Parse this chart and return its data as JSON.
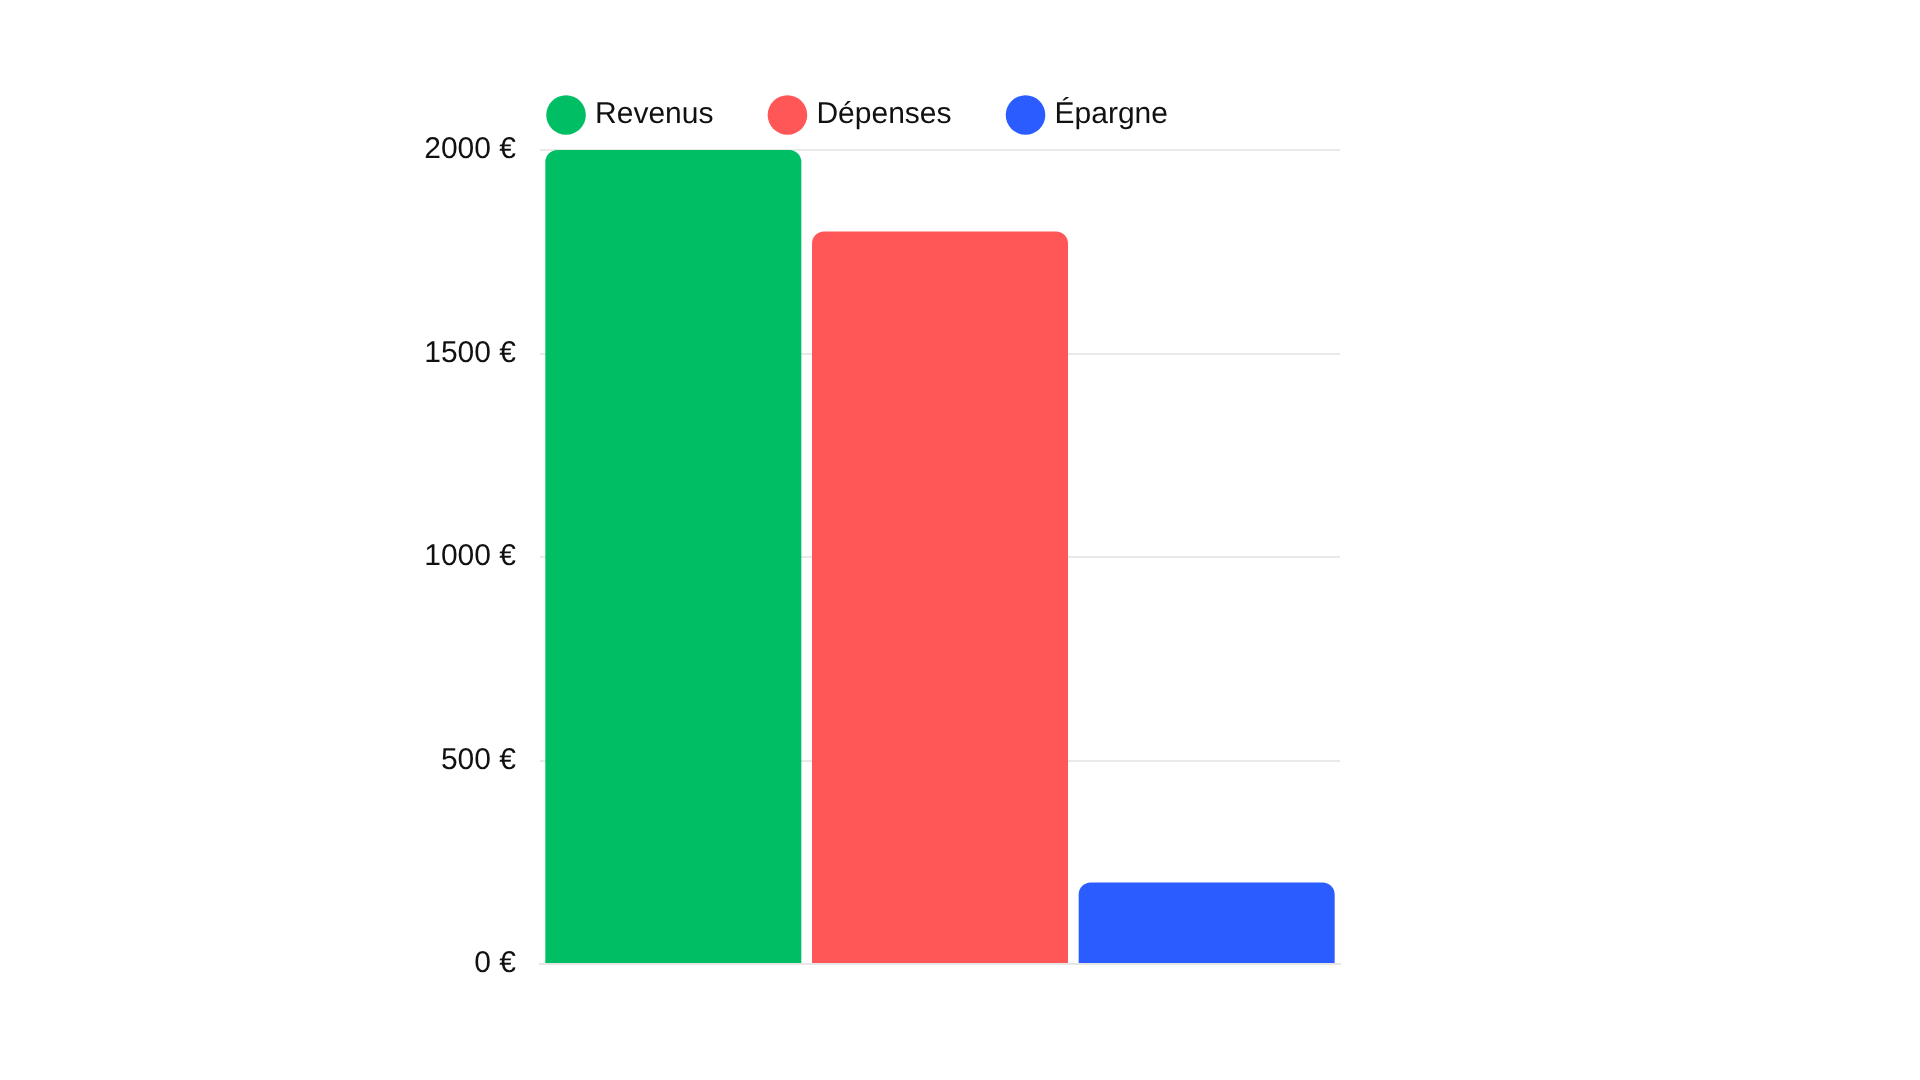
{
  "chart_data": {
    "type": "bar",
    "categories": [
      null
    ],
    "series": [
      {
        "name": "Revenus",
        "color": "#00be64",
        "values": [
          2000
        ]
      },
      {
        "name": "Dépenses",
        "color": "#ff5757",
        "values": [
          1800
        ]
      },
      {
        "name": "Épargne",
        "color": "#2b5cff",
        "values": [
          200
        ]
      }
    ],
    "ylim": [
      0,
      2000
    ],
    "yticks": [
      {
        "value": 0,
        "label": "0 €"
      },
      {
        "value": 500,
        "label": "500 €"
      },
      {
        "value": 1000,
        "label": "1000 €"
      },
      {
        "value": 1500,
        "label": "1500 €"
      },
      {
        "value": 2000,
        "label": "2000 €"
      }
    ],
    "grid": "y",
    "legend": "top"
  }
}
